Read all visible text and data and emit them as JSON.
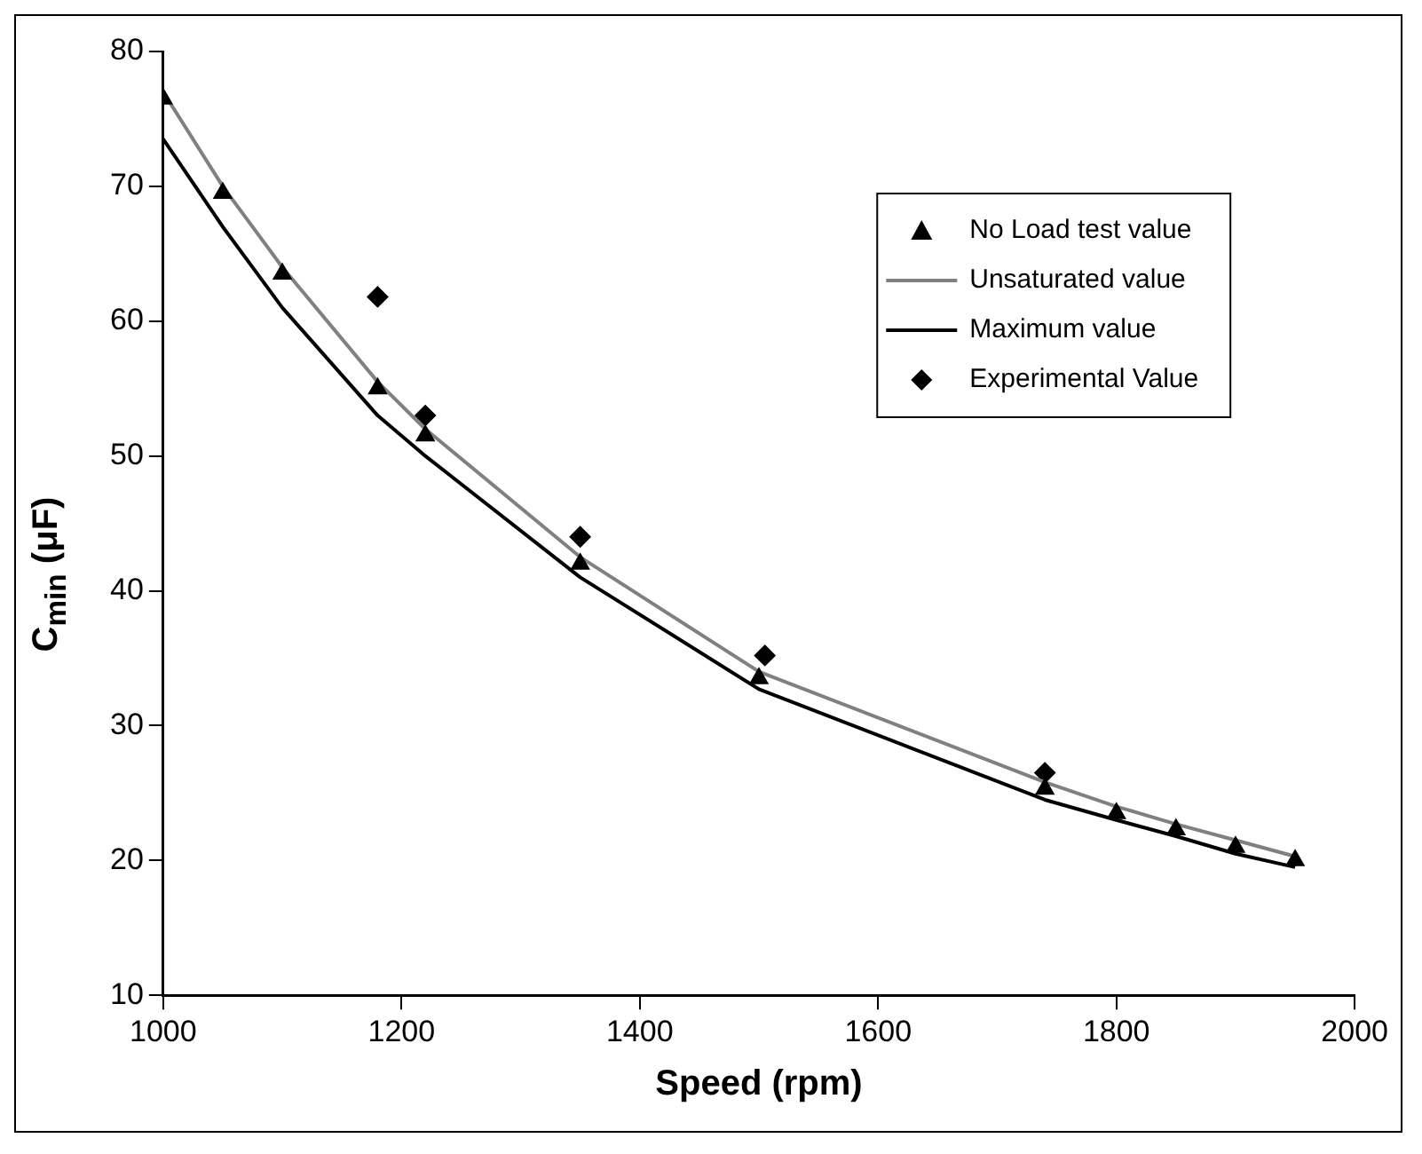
{
  "chart_data": {
    "type": "scatter",
    "xlabel": "Speed (rpm)",
    "ylabel": "C$_{min}$ (μF)",
    "xlim": [
      1000,
      2000
    ],
    "ylim": [
      10,
      80
    ],
    "xticks": [
      1000,
      1200,
      1400,
      1600,
      1800,
      2000
    ],
    "yticks": [
      10,
      20,
      30,
      40,
      50,
      60,
      70,
      80
    ],
    "grid": false,
    "legend": "top right",
    "series": [
      {
        "name": "No Load test value",
        "marker": "triangle",
        "color": "#000000",
        "x": [
          1000,
          1050,
          1100,
          1180,
          1220,
          1350,
          1500,
          1740,
          1800,
          1850,
          1900,
          1950
        ],
        "values": [
          76.5,
          69.5,
          63.5,
          55,
          51.5,
          42,
          33.5,
          25.3,
          23.5,
          22.3,
          21,
          20
        ]
      },
      {
        "name": "Unsaturated value",
        "type": "line",
        "marker": "none",
        "line_style": "solid",
        "color": "#808080",
        "x": [
          1000,
          1050,
          1100,
          1180,
          1220,
          1350,
          1500,
          1740,
          1800,
          1850,
          1900,
          1950
        ],
        "values": [
          77,
          70,
          64,
          55.5,
          52,
          42.5,
          34,
          25.8,
          24,
          22.7,
          21.5,
          20.3
        ]
      },
      {
        "name": "Maximum value",
        "type": "line",
        "marker": "none",
        "line_style": "solid",
        "color": "#000000",
        "x": [
          1000,
          1050,
          1100,
          1180,
          1220,
          1350,
          1500,
          1740,
          1800,
          1850,
          1900,
          1950
        ],
        "values": [
          73.5,
          67,
          61,
          53,
          50,
          41,
          32.7,
          24.5,
          23,
          21.8,
          20.5,
          19.5
        ]
      },
      {
        "name": "Experimental Value",
        "marker": "diamond",
        "color": "#000000",
        "x": [
          1180,
          1220,
          1350,
          1505,
          1740
        ],
        "values": [
          61.8,
          53,
          44,
          35.2,
          26.5
        ]
      }
    ]
  }
}
